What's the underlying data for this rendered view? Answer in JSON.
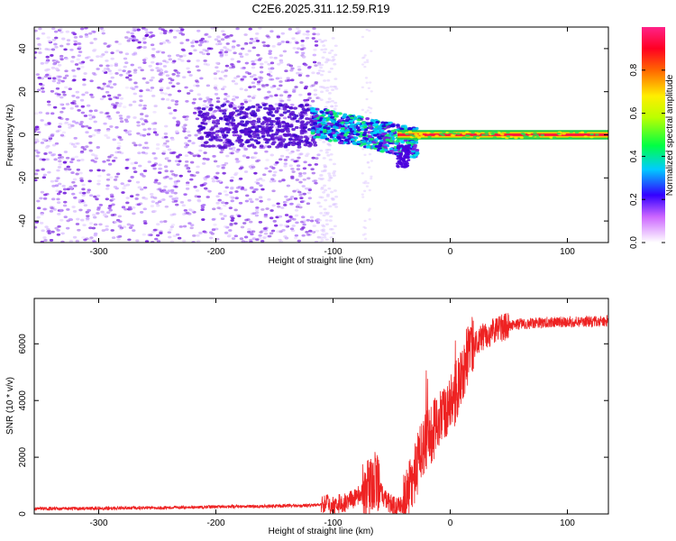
{
  "title": "C2E6.2025.311.12.59.R19",
  "colors": {
    "snr_line": "#ee2222",
    "scatter_main": "#7a1fe0",
    "bg": "#ffffff",
    "axis": "#000000"
  },
  "chart_data": [
    {
      "type": "heatmap",
      "title": "C2E6.2025.311.12.59.R19",
      "xlabel": "Height of straight line (km)",
      "ylabel": "Frequency (Hz)",
      "xlim": [
        -355,
        135
      ],
      "ylim": [
        -50,
        50
      ],
      "xticks": [
        -300,
        -200,
        -100,
        0,
        100
      ],
      "xtick_labels": [
        "-300",
        "-200",
        "-100",
        "0",
        "100"
      ],
      "yticks": [
        -40,
        -20,
        0,
        20,
        40
      ],
      "ytick_labels": [
        "-40",
        "-20",
        "0",
        "20",
        "40"
      ],
      "description_regions": [
        {
          "x_range": [
            -355,
            -110
          ],
          "freq_range": [
            -50,
            50
          ],
          "level": "low (0.1-0.25)"
        },
        {
          "x_range": [
            -210,
            -120
          ],
          "freq_range": [
            -5,
            15
          ],
          "level": "0.25"
        },
        {
          "x_range": [
            -115,
            -30
          ],
          "freq_range": [
            -12,
            8
          ],
          "level": "0.3-0.45"
        },
        {
          "x_range": [
            -30,
            135
          ],
          "freq_range": [
            -1,
            1
          ],
          "level": "0.9-1.0"
        }
      ],
      "colorbar": {
        "label": "Normalized spectral amplitude",
        "range": [
          0,
          1
        ],
        "ticks": [
          0.0,
          0.2,
          0.4,
          0.6,
          0.8
        ],
        "tick_labels": [
          "0.0",
          "0.2",
          "0.4",
          "0.6",
          "0.8"
        ]
      }
    },
    {
      "type": "line",
      "xlabel": "Height of straight line (km)",
      "ylabel": "SNR (10 * v/v)",
      "xlim": [
        -355,
        135
      ],
      "ylim": [
        0,
        7600
      ],
      "xticks": [
        -300,
        -200,
        -100,
        0,
        100
      ],
      "xtick_labels": [
        "-300",
        "-200",
        "-100",
        "0",
        "100"
      ],
      "yticks": [
        0,
        2000,
        4000,
        6000
      ],
      "ytick_labels": [
        "0",
        "2000",
        "4000",
        "6000"
      ],
      "series": [
        {
          "name": "SNR",
          "x": [
            -355,
            -300,
            -250,
            -200,
            -150,
            -120,
            -100,
            -90,
            -80,
            -70,
            -65,
            -60,
            -55,
            -50,
            -45,
            -40,
            -35,
            -30,
            -25,
            -20,
            -15,
            -10,
            -5,
            0,
            5,
            10,
            15,
            20,
            30,
            40,
            50,
            60,
            80,
            100,
            120,
            135
          ],
          "y": [
            180,
            200,
            220,
            250,
            280,
            300,
            350,
            400,
            600,
            900,
            1300,
            800,
            500,
            300,
            250,
            400,
            800,
            1500,
            2200,
            2600,
            2900,
            3200,
            3500,
            3800,
            4300,
            4900,
            5600,
            6000,
            6300,
            6500,
            6650,
            6700,
            6750,
            6780,
            6800,
            6800
          ]
        }
      ]
    }
  ]
}
